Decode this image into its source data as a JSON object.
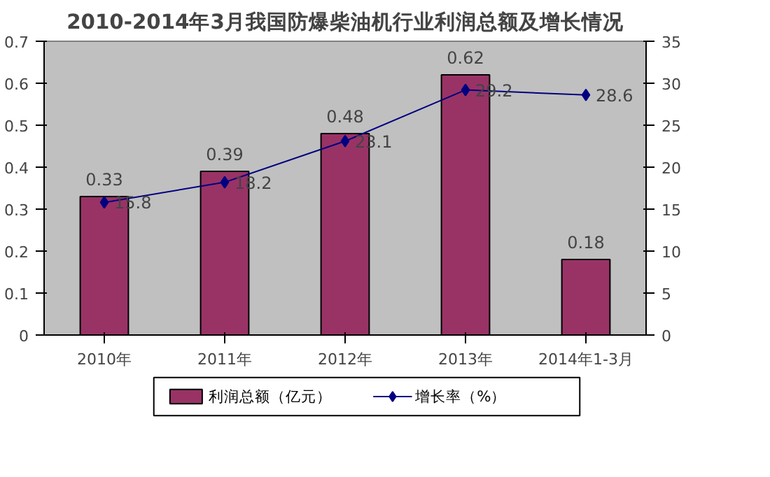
{
  "chart_data": {
    "type": "bar",
    "title": "2010-2014年3月我国防爆柴油机行业利润总额及增长情况",
    "categories": [
      "2010年",
      "2011年",
      "2012年",
      "2013年",
      "2014年1-3月"
    ],
    "series": [
      {
        "name": "利润总额（亿元）",
        "color": "#993366",
        "values": [
          0.33,
          0.39,
          0.48,
          0.62,
          0.18
        ]
      },
      {
        "name": "增长率（%）",
        "type": "line",
        "axis": "y2",
        "color": "#000080",
        "values": [
          15.8,
          18.2,
          23.1,
          29.2,
          28.6
        ]
      }
    ],
    "ylim": [
      0,
      0.7
    ],
    "yticks": [
      0,
      0.1,
      0.2,
      0.3,
      0.4,
      0.5,
      0.6,
      0.7
    ],
    "y2lim": [
      0,
      35
    ],
    "y2ticks": [
      0,
      5,
      10,
      15,
      20,
      25,
      30,
      35
    ],
    "data_labels": true,
    "legend": "bottom",
    "grid": false,
    "marker": "diamond"
  }
}
